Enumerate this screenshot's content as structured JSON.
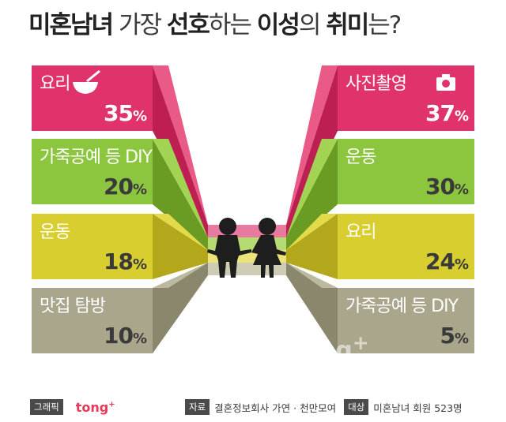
{
  "title": {
    "parts": [
      {
        "text": "미혼남녀",
        "bold": true
      },
      {
        "text": " 가장 ",
        "bold": false
      },
      {
        "text": "선호",
        "bold": true
      },
      {
        "text": "하는 ",
        "bold": false
      },
      {
        "text": "이성",
        "bold": true
      },
      {
        "text": "의 ",
        "bold": false
      },
      {
        "text": "취미",
        "bold": true
      },
      {
        "text": "는?",
        "bold": false
      }
    ]
  },
  "chart_data": {
    "type": "bar",
    "title": "미혼남녀 가장 선호하는 이성의 취미는?",
    "percent_sign": "%",
    "left": [
      {
        "label": "요리",
        "value": 35,
        "icon": "mixing-bowl-icon"
      },
      {
        "label": "가죽공예 등 DIY",
        "value": 20
      },
      {
        "label": "운동",
        "value": 18
      },
      {
        "label": "맛집 탐방",
        "value": 10
      }
    ],
    "right": [
      {
        "label": "사진촬영",
        "value": 37,
        "icon": "camera-icon"
      },
      {
        "label": "운동",
        "value": 30
      },
      {
        "label": "요리",
        "value": 24
      },
      {
        "label": "가죽공예 등 DIY",
        "value": 5
      }
    ],
    "colors": [
      "#e0336b",
      "#8cc63f",
      "#d8ce2f",
      "#aaa68c"
    ],
    "colors_dark": [
      "#bd1f52",
      "#6a9b23",
      "#b3a81b",
      "#8a876d"
    ],
    "colors_mid": [
      "#e95a86",
      "#a2d353",
      "#e3da4a",
      "#bdb9a0"
    ]
  },
  "footer": {
    "graphic_tag": "그래픽",
    "brand": "tong",
    "brand_plus": "+",
    "source_tag": "자료",
    "source_text": "결혼정보회사 가연 · 천만모여",
    "subject_tag": "대상",
    "subject_text": "미혼남녀 회원 523명"
  },
  "watermark": {
    "text": "tong",
    "plus": "+"
  }
}
